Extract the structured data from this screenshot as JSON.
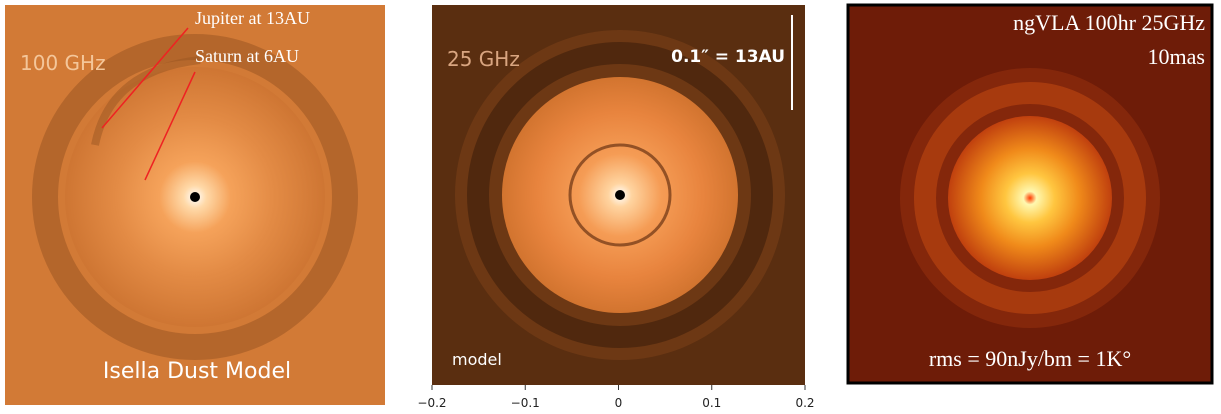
{
  "panels": [
    {
      "label": "100 GHz",
      "annotations": [
        "Jupiter at 13AU",
        "Saturn at 6AU"
      ],
      "caption": "Isella Dust Model"
    },
    {
      "label": "25 GHz",
      "scale": "0.1″ = 13AU",
      "caption": "model",
      "axis_ticks": [
        "−0.2",
        "−0.1",
        "0",
        "0.1",
        "0.2"
      ]
    },
    {
      "title": [
        "ngVLA 100hr 25GHz",
        "10mas"
      ],
      "caption": "rms = 90nJy/bm = 1K°"
    }
  ]
}
